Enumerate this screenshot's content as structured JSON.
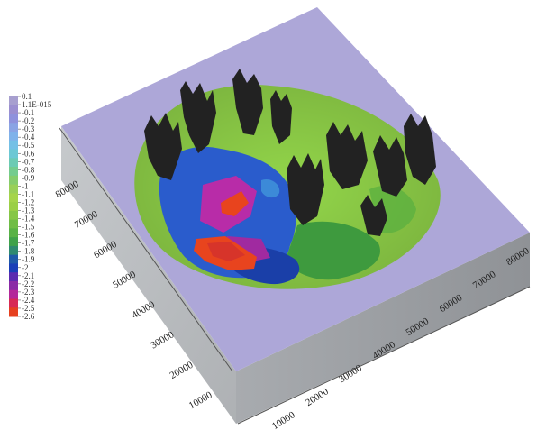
{
  "legend": {
    "colors": [
      "#a79fcf",
      "#9b8fd0",
      "#8f92dc",
      "#8aa4e4",
      "#7fb2ea",
      "#74c0e6",
      "#6cc8d4",
      "#6ccbb4",
      "#74cc8e",
      "#85cc6c",
      "#99cf58",
      "#a5d44a",
      "#9bcf46",
      "#86c646",
      "#6fbd46",
      "#58b246",
      "#3fa24a",
      "#2f8a70",
      "#1f5aa8",
      "#1a3fb8",
      "#5b2bb0",
      "#8a2aa6",
      "#b3289a",
      "#d72a55",
      "#e6401f"
    ],
    "labels": [
      "0.1",
      "1.1E-015",
      "-0.1",
      "-0.2",
      "-0.3",
      "-0.4",
      "-0.5",
      "-0.6",
      "-0.7",
      "-0.8",
      "-0.9",
      "-1",
      "-1.1",
      "-1.2",
      "-1.3",
      "-1.4",
      "-1.5",
      "-1.6",
      "-1.7",
      "-1.8",
      "-1.9",
      "-2",
      "-2.1",
      "-2.2",
      "-2.3",
      "-2.4",
      "-2.5",
      "-2.6"
    ]
  },
  "left_axis": {
    "ticks": [
      "10000",
      "20000",
      "30000",
      "40000",
      "50000",
      "60000",
      "70000",
      "80000"
    ]
  },
  "front_axis": {
    "ticks": [
      "10000",
      "20000",
      "30000",
      "40000",
      "50000",
      "60000",
      "70000",
      "80000"
    ]
  },
  "colors": {
    "top_surface": "#ada7d8",
    "left_face": "#b9bcbf",
    "front_face": "#9a9da1",
    "peaks": "#222222",
    "shallow": "#93d64a",
    "mid": "#2a5ccc",
    "deep_purple": "#b82ca8",
    "deepest": "#e8441e"
  }
}
